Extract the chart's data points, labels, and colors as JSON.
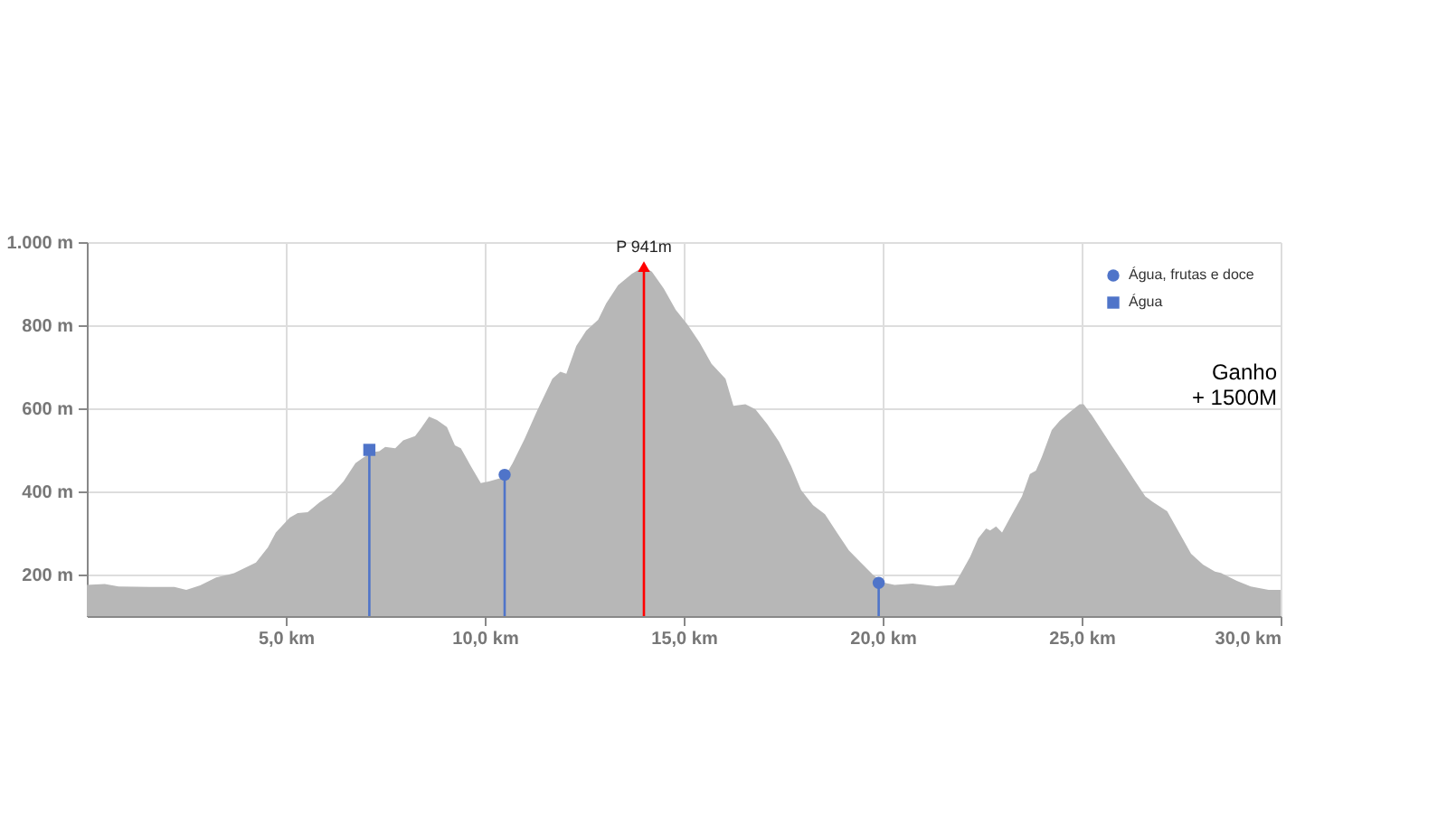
{
  "chart_data": {
    "type": "area",
    "x": [
      0,
      0.45,
      0.8,
      1.6,
      2.2,
      2.5,
      2.85,
      3.25,
      3.7,
      4.25,
      4.55,
      4.75,
      5.1,
      5.3,
      5.55,
      5.85,
      6.15,
      6.45,
      6.75,
      6.9,
      7.15,
      7.35,
      7.5,
      7.75,
      7.95,
      8.25,
      8.4,
      8.6,
      8.8,
      9.05,
      9.25,
      9.4,
      9.65,
      9.9,
      10.1,
      10.5,
      10.7,
      11.0,
      11.3,
      11.7,
      11.9,
      12.05,
      12.3,
      12.55,
      12.85,
      13.05,
      13.35,
      13.7,
      14.0,
      14.2,
      14.5,
      14.8,
      15.1,
      15.4,
      15.7,
      16.05,
      16.25,
      16.55,
      16.8,
      17.1,
      17.4,
      17.7,
      17.95,
      18.25,
      18.55,
      18.85,
      19.15,
      19.45,
      19.75,
      20.0,
      20.3,
      20.75,
      21.05,
      21.35,
      21.8,
      21.95,
      22.2,
      22.4,
      22.6,
      22.7,
      22.85,
      23.0,
      23.25,
      23.5,
      23.7,
      23.85,
      24.0,
      24.25,
      24.45,
      24.7,
      24.95,
      25.05,
      25.25,
      25.45,
      25.75,
      26.05,
      26.35,
      26.6,
      26.8,
      27.15,
      27.45,
      27.75,
      28.05,
      28.35,
      28.5,
      28.9,
      29.25,
      29.7,
      30.0
    ],
    "series": [
      {
        "color": "#b7b7b7",
        "values": [
          175,
          177,
          171,
          170,
          170,
          163,
          174,
          193,
          203,
          229,
          265,
          301,
          337,
          348,
          350,
          374,
          393,
          424,
          468,
          478,
          494,
          497,
          507,
          504,
          523,
          533,
          552,
          580,
          572,
          555,
          511,
          504,
          461,
          420,
          424,
          435,
          468,
          526,
          591,
          671,
          688,
          683,
          750,
          787,
          813,
          852,
          896,
          924,
          941,
          929,
          888,
          837,
          801,
          758,
          707,
          671,
          606,
          610,
          598,
          562,
          519,
          461,
          403,
          367,
          345,
          301,
          258,
          229,
          200,
          181,
          175,
          178,
          175,
          172,
          175,
          200,
          243,
          287,
          311,
          306,
          316,
          301,
          345,
          388,
          442,
          450,
          483,
          548,
          570,
          591,
          610,
          610,
          584,
          555,
          511,
          468,
          424,
          388,
          374,
          352,
          301,
          250,
          224,
          207,
          204,
          185,
          171,
          163,
          163
        ]
      },
      {
        "type": "lollipop",
        "name": "Água, frutas e doce",
        "color": "#4f74c9",
        "marker": "circle",
        "x": [
          10.5,
          19.9
        ],
        "values": [
          440,
          180
        ]
      },
      {
        "type": "lollipop",
        "name": "Água",
        "color": "#4f74c9",
        "marker": "square",
        "x": [
          7.1
        ],
        "values": [
          500
        ]
      },
      {
        "type": "lollipop",
        "color": "#ff0000",
        "marker": "triangle",
        "x": [
          14.0
        ],
        "values": [
          941
        ],
        "value_labels": [
          "P 941m"
        ]
      }
    ],
    "xlim": [
      0,
      30
    ],
    "ylim": [
      100,
      1000
    ],
    "xticks": [
      {
        "value": 5,
        "label": "5,0 km"
      },
      {
        "value": 10,
        "label": "10,0 km"
      },
      {
        "value": 15,
        "label": "15,0 km"
      },
      {
        "value": 20,
        "label": "20,0 km"
      },
      {
        "value": 25,
        "label": "25,0 km"
      },
      {
        "value": 30,
        "label": "30,0 km"
      }
    ],
    "yticks": [
      {
        "value": 200,
        "label": "200 m"
      },
      {
        "value": 400,
        "label": "400 m"
      },
      {
        "value": 600,
        "label": "600 m"
      },
      {
        "value": 800,
        "label": "800 m"
      },
      {
        "value": 1000,
        "label": "1.000 m"
      }
    ],
    "grid": true,
    "legend": "top right",
    "annotations": [
      "Ganho\n+ 1500M"
    ]
  }
}
